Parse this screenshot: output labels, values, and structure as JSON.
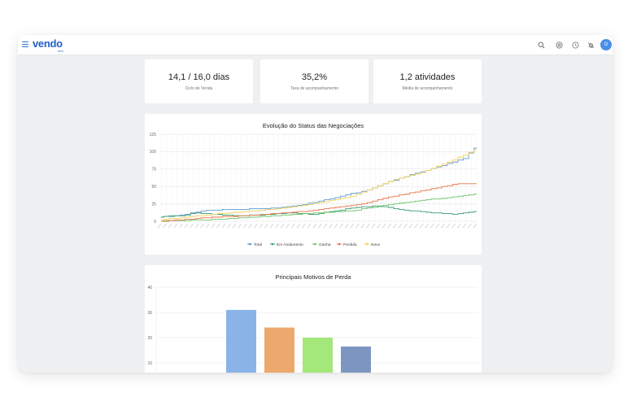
{
  "app": {
    "logo": "vendo",
    "logo_sub": ".crm",
    "avatar_initial": "G",
    "accent": "#1f5fc9"
  },
  "header_icons": [
    "search-icon",
    "target-icon",
    "clock-icon",
    "notifications-off-icon"
  ],
  "kpis": [
    {
      "value": "14,1 / 16,0 dias",
      "label": "Ciclo de Venda"
    },
    {
      "value": "35,2%",
      "label": "Taxa de acompanhamento"
    },
    {
      "value": "1,2 atividades",
      "label": "Média de acompanhamento"
    }
  ],
  "chart_data": [
    {
      "type": "line",
      "title": "Evolução do Status das Negociações",
      "ylim": [
        0,
        125
      ],
      "yticks": [
        0,
        25,
        50,
        75,
        100,
        125
      ],
      "grid": true,
      "legend": "bottom",
      "points": 60,
      "series": [
        {
          "name": "Total",
          "color": "#5b9bd5",
          "keyframes": [
            [
              0,
              6
            ],
            [
              5,
              10
            ],
            [
              9,
              16
            ],
            [
              15,
              17
            ],
            [
              22,
              19
            ],
            [
              27,
              24
            ],
            [
              33,
              34
            ],
            [
              39,
              45
            ],
            [
              43,
              57
            ],
            [
              48,
              69
            ],
            [
              53,
              80
            ],
            [
              57,
              90
            ],
            [
              59,
              105
            ]
          ]
        },
        {
          "name": "Em Andamento",
          "color": "#3a9e72",
          "keyframes": [
            [
              0,
              6
            ],
            [
              4,
              8
            ],
            [
              7,
              12
            ],
            [
              10,
              10
            ],
            [
              14,
              8
            ],
            [
              19,
              9
            ],
            [
              24,
              12
            ],
            [
              29,
              10
            ],
            [
              33,
              15
            ],
            [
              37,
              20
            ],
            [
              41,
              22
            ],
            [
              46,
              16
            ],
            [
              50,
              13
            ],
            [
              55,
              10
            ],
            [
              57,
              12
            ],
            [
              59,
              14
            ]
          ]
        },
        {
          "name": "Ganha",
          "color": "#6cc66b",
          "keyframes": [
            [
              0,
              0
            ],
            [
              8,
              2
            ],
            [
              14,
              4
            ],
            [
              20,
              7
            ],
            [
              26,
              10
            ],
            [
              32,
              13
            ],
            [
              36,
              15
            ],
            [
              40,
              20
            ],
            [
              44,
              25
            ],
            [
              49,
              30
            ],
            [
              54,
              34
            ],
            [
              59,
              39
            ]
          ]
        },
        {
          "name": "Perdida",
          "color": "#e8734a",
          "keyframes": [
            [
              0,
              0
            ],
            [
              6,
              3
            ],
            [
              10,
              6
            ],
            [
              16,
              8
            ],
            [
              22,
              11
            ],
            [
              28,
              15
            ],
            [
              33,
              20
            ],
            [
              38,
              25
            ],
            [
              43,
              35
            ],
            [
              48,
              42
            ],
            [
              53,
              50
            ],
            [
              56,
              54
            ],
            [
              59,
              54
            ]
          ]
        },
        {
          "name": "Novo",
          "color": "#f2cf5b",
          "keyframes": [
            [
              0,
              2
            ],
            [
              5,
              6
            ],
            [
              10,
              10
            ],
            [
              16,
              14
            ],
            [
              22,
              18
            ],
            [
              26,
              22
            ],
            [
              31,
              28
            ],
            [
              36,
              36
            ],
            [
              40,
              48
            ],
            [
              44,
              60
            ],
            [
              49,
              70
            ],
            [
              54,
              85
            ],
            [
              57,
              95
            ],
            [
              59,
              103
            ]
          ]
        }
      ]
    },
    {
      "type": "bar",
      "title": "Principais Motivos de Perda",
      "ylim": [
        0,
        40
      ],
      "yticks": [
        10,
        20,
        30,
        40
      ],
      "grid": true,
      "values": [
        31,
        24,
        20,
        16.5
      ],
      "colors": [
        "#8ab4e8",
        "#eda86d",
        "#a4e77a",
        "#7d96c0"
      ]
    }
  ]
}
